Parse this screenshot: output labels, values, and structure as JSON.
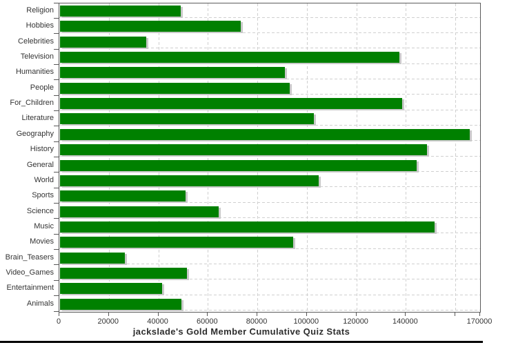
{
  "title": "jackslade's Gold Member Cumulative Quiz Stats",
  "colors": {
    "bar": "#008000",
    "bar_shadow": "#c9c9c9",
    "gridline": "#cfcfcf",
    "axis": "#555555",
    "text": "#333333",
    "divider": "#000000",
    "background": "#ffffff"
  },
  "chart_data": {
    "type": "bar",
    "orientation": "horizontal",
    "title": "jackslade's Gold Member Cumulative Quiz Stats",
    "xlabel": "",
    "ylabel": "",
    "xlim": [
      0,
      170000
    ],
    "grid": true,
    "legend": false,
    "categories": [
      "Religion",
      "Hobbies",
      "Celebrities",
      "Television",
      "Humanities",
      "People",
      "For_Children",
      "Literature",
      "Geography",
      "History",
      "General",
      "World",
      "Sports",
      "Science",
      "Music",
      "Movies",
      "Brain_Teasers",
      "Video_Games",
      "Entertainment",
      "Animals"
    ],
    "values": [
      48700,
      72900,
      34800,
      137200,
      90900,
      92700,
      138300,
      102600,
      165600,
      148200,
      144200,
      104500,
      50600,
      64000,
      151400,
      94200,
      26200,
      51300,
      41300,
      49000
    ],
    "xticks": [
      {
        "value": 0,
        "label": "0"
      },
      {
        "value": 20000,
        "label": "20000"
      },
      {
        "value": 40000,
        "label": "40000"
      },
      {
        "value": 60000,
        "label": "60000"
      },
      {
        "value": 80000,
        "label": "80000"
      },
      {
        "value": 100000,
        "label": "100000"
      },
      {
        "value": 120000,
        "label": "120000"
      },
      {
        "value": 140000,
        "label": "140000"
      },
      {
        "value": 160000,
        "label": ""
      },
      {
        "value": 170000,
        "label": "170000"
      }
    ]
  }
}
